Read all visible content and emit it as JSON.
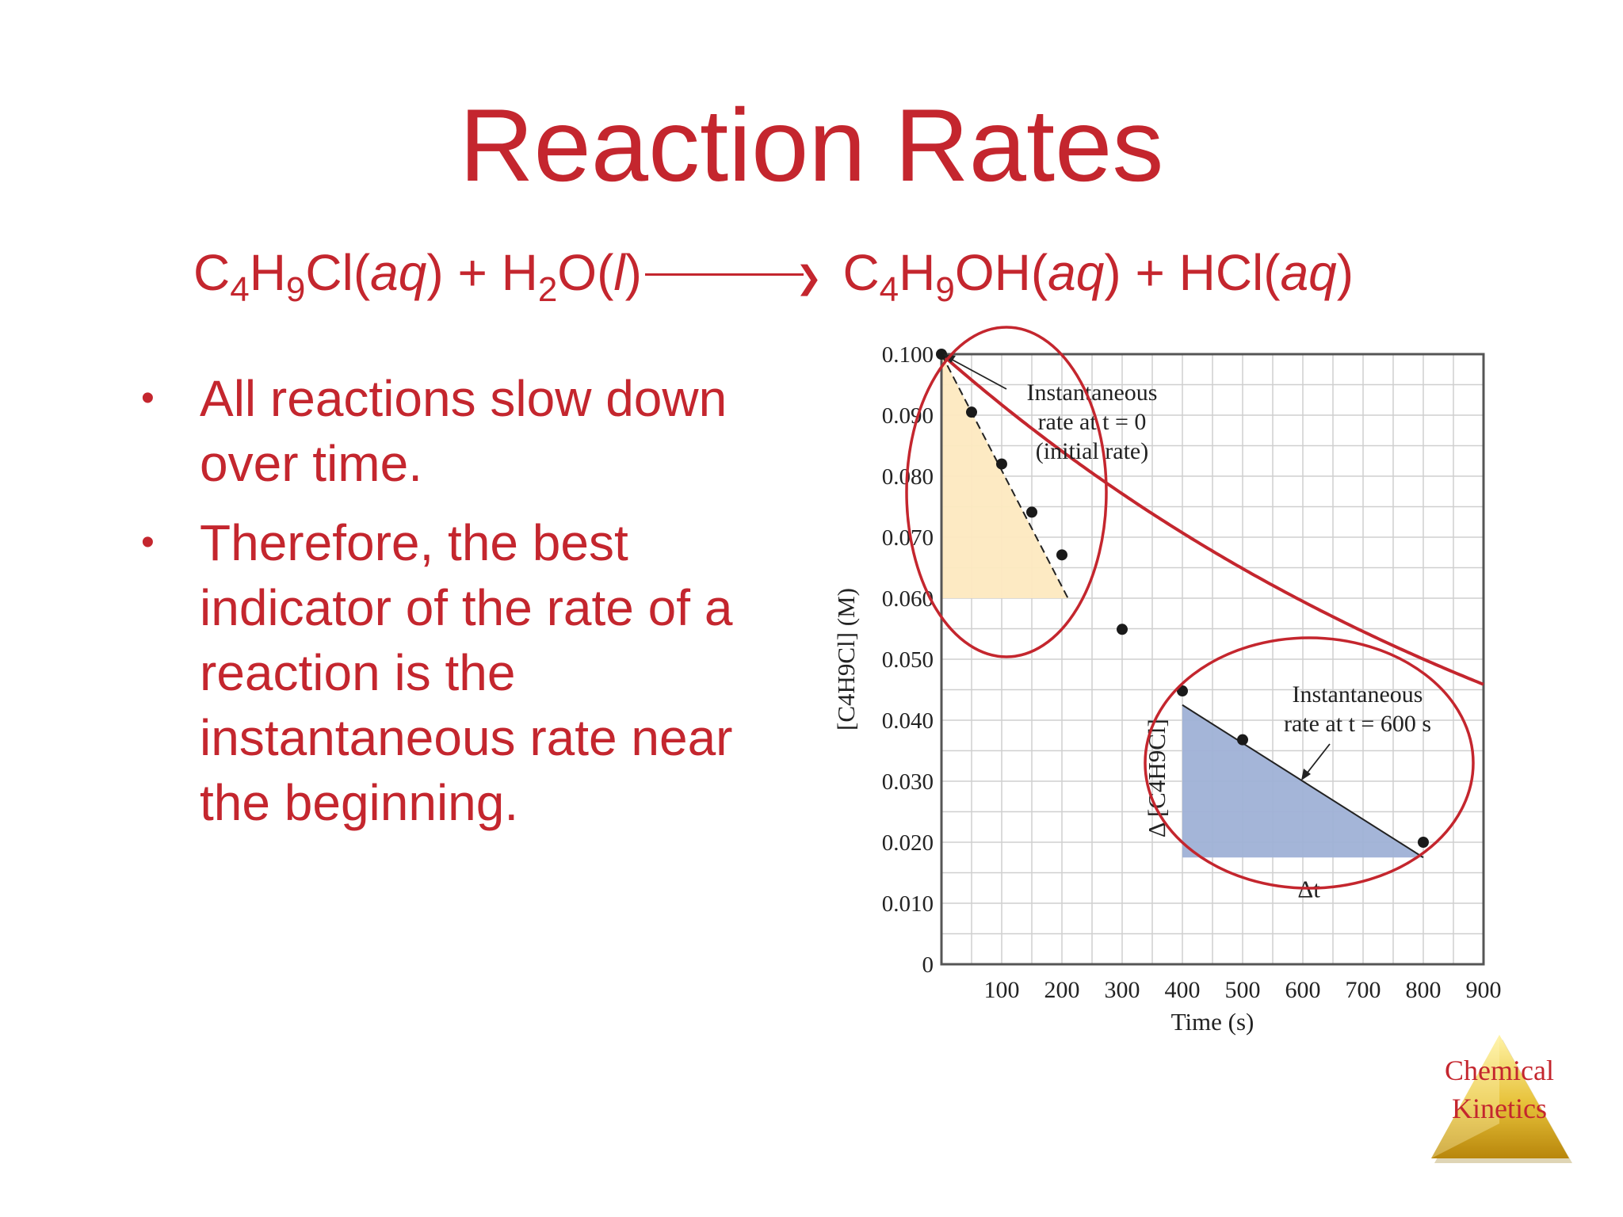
{
  "slide": {
    "title": "Reaction Rates",
    "equation": {
      "r1": "C",
      "r1s1": "4",
      "r1b": "H",
      "r1s2": "9",
      "r1c": "Cl(",
      "r1state": "aq",
      "r1end": ")",
      "plus1": " + ",
      "r2": "H",
      "r2s": "2",
      "r2b": "O(",
      "r2state": "l",
      "r2end": ")",
      "p1": "C",
      "p1s1": "4",
      "p1b": "H",
      "p1s2": "9",
      "p1c": "OH(",
      "p1state": "aq",
      "p1end": ")",
      "plus2": " + ",
      "p2": "HCl(",
      "p2state": "aq",
      "p2end": ")"
    },
    "bullets": [
      "All reactions slow down over time.",
      "Therefore, the best indicator of the rate of a reaction is the instantaneous rate near the beginning."
    ],
    "logo_text_line1": "Chemical",
    "logo_text_line2": "Kinetics"
  },
  "colors": {
    "accent": "#c4262e",
    "tangent_fill_initial": "#fde9c0",
    "tangent_fill_600": "#9fb1d6",
    "grid": "#cfcfcf",
    "frame": "#555555"
  },
  "chart_data": {
    "type": "line",
    "xlabel": "Time (s)",
    "ylabel": "[C4H9Cl] (M)",
    "xlim": [
      0,
      900
    ],
    "ylim": [
      0,
      0.1
    ],
    "x_ticks": [
      "100",
      "200",
      "300",
      "400",
      "500",
      "600",
      "700",
      "800",
      "900"
    ],
    "y_ticks": [
      "0",
      "0.010",
      "0.020",
      "0.030",
      "0.040",
      "0.050",
      "0.060",
      "0.070",
      "0.080",
      "0.090",
      "0.100"
    ],
    "grid": true,
    "series": [
      {
        "x": [
          0,
          50,
          100,
          150,
          200,
          300,
          400,
          500,
          800
        ],
        "y": [
          0.1,
          0.0905,
          0.082,
          0.0741,
          0.0671,
          0.0549,
          0.0448,
          0.0368,
          0.02
        ]
      }
    ],
    "annotations": {
      "initial_rate": [
        "Instantaneous",
        "rate at t = 0",
        "(initial rate)"
      ],
      "rate_600": [
        "Instantaneous",
        "rate at t = 600 s"
      ],
      "delta_t": "Δt",
      "delta_conc": "Δ [C4H9Cl]"
    },
    "tangent_initial": {
      "x": [
        0,
        210
      ],
      "y": [
        0.1,
        0.06
      ]
    },
    "tangent_600": {
      "x": [
        400,
        800
      ],
      "y": [
        0.0425,
        0.0175
      ]
    }
  }
}
